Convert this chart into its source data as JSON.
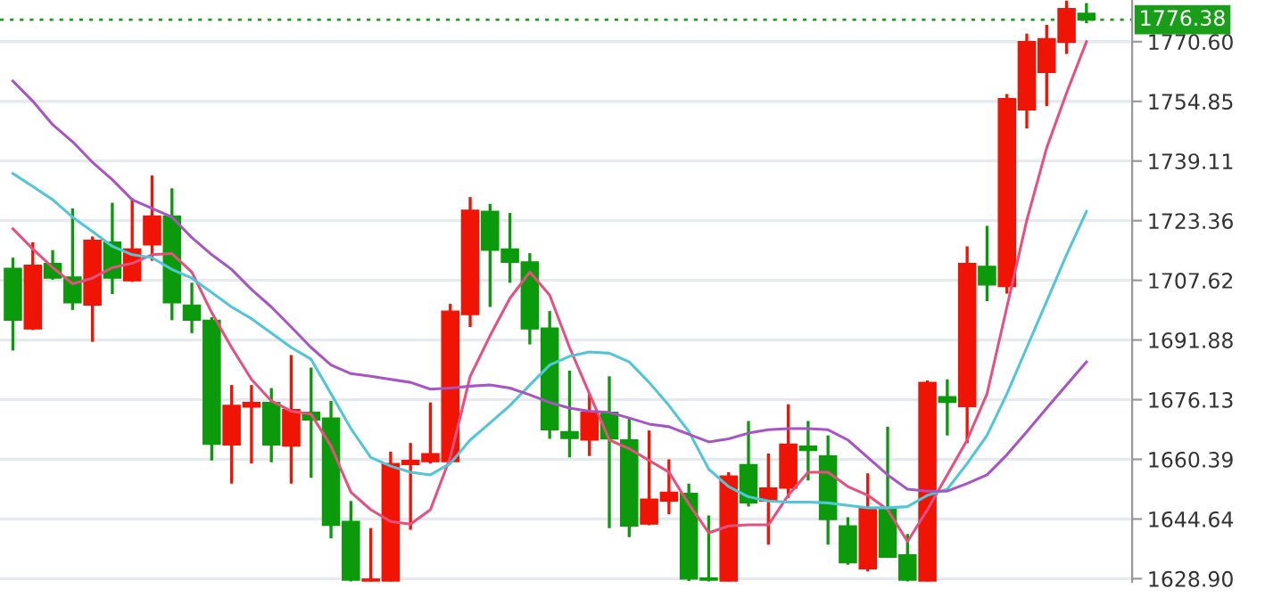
{
  "chart_data": {
    "type": "candlestick",
    "categories": [
      null,
      null,
      null,
      null,
      null,
      null,
      null,
      null,
      null,
      null,
      null,
      null,
      null,
      null,
      null,
      null,
      null,
      null,
      null,
      null,
      null,
      null,
      null,
      null,
      null,
      null,
      null,
      null,
      null,
      null,
      null,
      null,
      null,
      null,
      null,
      null,
      null,
      null,
      null,
      null,
      null,
      null,
      null,
      null,
      null,
      null,
      null,
      null,
      null,
      null,
      null,
      null,
      null,
      null,
      null
    ],
    "ohlc": [
      [
        1710.8,
        1713.6,
        1689.1,
        1697.1
      ],
      [
        1694.8,
        1717.7,
        1694.5,
        1711.6
      ],
      [
        1712.1,
        1715.6,
        1707.8,
        1708.2
      ],
      [
        1708.5,
        1726.6,
        1699.8,
        1701.7
      ],
      [
        1701.1,
        1719.2,
        1691.4,
        1718.2
      ],
      [
        1717.7,
        1728.1,
        1704.0,
        1708.2
      ],
      [
        1707.5,
        1729.3,
        1707.2,
        1715.9
      ],
      [
        1717.0,
        1735.3,
        1712.8,
        1724.6
      ],
      [
        1724.6,
        1731.9,
        1697.1,
        1701.7
      ],
      [
        1701.1,
        1707.0,
        1693.7,
        1697.1
      ],
      [
        1697.1,
        1697.9,
        1660.1,
        1664.4
      ],
      [
        1664.2,
        1680.0,
        1654.0,
        1674.6
      ],
      [
        1674.2,
        1680.0,
        1659.3,
        1675.4
      ],
      [
        1675.4,
        1679.2,
        1659.6,
        1664.2
      ],
      [
        1663.9,
        1687.9,
        1654.0,
        1673.5
      ],
      [
        1672.8,
        1684.6,
        1655.5,
        1670.8
      ],
      [
        1671.3,
        1675.8,
        1639.5,
        1643.0
      ],
      [
        1644.0,
        1649.4,
        1628.2,
        1628.5
      ],
      [
        1628.3,
        1642.2,
        1628.2,
        1628.8
      ],
      [
        1628.3,
        1662.4,
        1628.2,
        1659.3
      ],
      [
        1659.0,
        1664.7,
        1641.8,
        1660.1
      ],
      [
        1659.8,
        1675.4,
        1659.3,
        1661.9
      ],
      [
        1659.8,
        1701.4,
        1659.3,
        1699.5
      ],
      [
        1698.6,
        1729.6,
        1695.3,
        1726.1
      ],
      [
        1725.8,
        1727.8,
        1700.6,
        1715.6
      ],
      [
        1715.9,
        1725.4,
        1707.0,
        1712.4
      ],
      [
        1712.5,
        1714.8,
        1690.7,
        1694.8
      ],
      [
        1695.0,
        1699.5,
        1665.8,
        1668.2
      ],
      [
        1667.7,
        1683.8,
        1660.9,
        1665.9
      ],
      [
        1665.5,
        1677.7,
        1661.3,
        1672.8
      ],
      [
        1672.8,
        1682.3,
        1642.2,
        1665.8
      ],
      [
        1665.5,
        1671.3,
        1639.9,
        1642.8
      ],
      [
        1643.3,
        1668.0,
        1643.0,
        1649.9
      ],
      [
        1649.4,
        1660.4,
        1645.9,
        1651.7
      ],
      [
        1651.4,
        1654.0,
        1628.3,
        1628.8
      ],
      [
        1629.1,
        1645.6,
        1628.2,
        1628.5
      ],
      [
        1628.3,
        1657.0,
        1628.2,
        1656.0
      ],
      [
        1659.0,
        1670.5,
        1647.9,
        1648.9
      ],
      [
        1649.4,
        1661.9,
        1637.9,
        1652.8
      ],
      [
        1652.8,
        1674.9,
        1650.2,
        1664.4
      ],
      [
        1663.9,
        1670.5,
        1654.8,
        1662.7
      ],
      [
        1661.3,
        1666.7,
        1637.9,
        1644.5
      ],
      [
        1642.8,
        1645.1,
        1632.6,
        1633.1
      ],
      [
        1631.5,
        1656.7,
        1630.8,
        1647.6
      ],
      [
        1647.6,
        1669.0,
        1634.5,
        1634.6
      ],
      [
        1635.2,
        1640.7,
        1628.2,
        1628.5
      ],
      [
        1628.3,
        1681.2,
        1628.2,
        1680.7
      ],
      [
        1676.9,
        1681.5,
        1666.7,
        1675.4
      ],
      [
        1674.3,
        1716.6,
        1664.7,
        1712.1
      ],
      [
        1711.3,
        1722.0,
        1702.1,
        1706.4
      ],
      [
        1706.0,
        1756.8,
        1704.1,
        1755.6
      ],
      [
        1752.6,
        1772.7,
        1747.7,
        1770.6
      ],
      [
        1762.5,
        1775.0,
        1753.6,
        1771.4
      ],
      [
        1770.4,
        1781.4,
        1767.4,
        1779.3
      ],
      [
        1778.1,
        1780.8,
        1775.5,
        1776.38
      ]
    ],
    "colors": [
      "#0b9a0b",
      "#f01405",
      "#0b9a0b",
      "#0b9a0b",
      "#f01405",
      "#0b9a0b",
      "#f01405",
      "#f01405",
      "#0b9a0b",
      "#0b9a0b",
      "#0b9a0b",
      "#f01405",
      "#f01405",
      "#0b9a0b",
      "#f01405",
      "#0b9a0b",
      "#0b9a0b",
      "#0b9a0b",
      "#f01405",
      "#f01405",
      "#f01405",
      "#f01405",
      "#f01405",
      "#f01405",
      "#0b9a0b",
      "#0b9a0b",
      "#0b9a0b",
      "#0b9a0b",
      "#0b9a0b",
      "#f01405",
      "#0b9a0b",
      "#0b9a0b",
      "#f01405",
      "#f01405",
      "#0b9a0b",
      "#0b9a0b",
      "#f01405",
      "#0b9a0b",
      "#f01405",
      "#f01405",
      "#0b9a0b",
      "#0b9a0b",
      "#0b9a0b",
      "#f01405",
      "#0b9a0b",
      "#0b9a0b",
      "#f01405",
      "#0b9a0b",
      "#f01405",
      "#0b9a0b",
      "#f01405",
      "#f01405",
      "#f01405",
      "#f01405",
      "#0b9a0b"
    ],
    "series": [
      {
        "type": "line",
        "color": "#e5507f",
        "values": [
          1721.2,
          1715.9,
          1711.0,
          1706.7,
          1708.2,
          1711.0,
          1712.1,
          1714.4,
          1714.7,
          1709.8,
          1699.1,
          1689.9,
          1681.5,
          1675.8,
          1673.1,
          1672.3,
          1663.9,
          1651.7,
          1647.1,
          1644.0,
          1643.3,
          1647.1,
          1660.9,
          1682.3,
          1693.0,
          1702.9,
          1709.8,
          1703.7,
          1689.9,
          1677.7,
          1665.5,
          1663.2,
          1660.1,
          1657.0,
          1648.6,
          1641.0,
          1642.8,
          1643.1,
          1643.1,
          1650.9,
          1657.0,
          1657.0,
          1653.2,
          1650.9,
          1647.1,
          1638.7,
          1647.1,
          1656.3,
          1665.5,
          1677.7,
          1700.6,
          1723.5,
          1742.6,
          1757.1,
          1770.6
        ]
      },
      {
        "type": "line",
        "color": "#52c6d8",
        "values": [
          1735.8,
          1732.4,
          1728.9,
          1724.3,
          1720.5,
          1716.6,
          1714.4,
          1713.6,
          1710.5,
          1708.2,
          1704.4,
          1700.6,
          1697.5,
          1693.7,
          1689.9,
          1686.8,
          1677.7,
          1668.5,
          1660.9,
          1658.6,
          1657.0,
          1656.3,
          1659.3,
          1665.5,
          1670.0,
          1674.6,
          1680.0,
          1685.3,
          1687.6,
          1688.7,
          1688.4,
          1686.1,
          1680.7,
          1674.6,
          1667.7,
          1657.8,
          1653.2,
          1650.5,
          1649.4,
          1649.1,
          1649.1,
          1648.9,
          1648.2,
          1647.6,
          1647.6,
          1647.9,
          1650.9,
          1652.5,
          1659.3,
          1666.7,
          1677.7,
          1689.9,
          1702.1,
          1714.4,
          1725.8
        ]
      },
      {
        "type": "line",
        "color": "#a655c2",
        "values": [
          1760.2,
          1754.9,
          1748.7,
          1744.2,
          1738.8,
          1734.2,
          1728.9,
          1726.6,
          1724.3,
          1718.9,
          1714.4,
          1710.5,
          1705.2,
          1700.6,
          1695.3,
          1689.9,
          1685.3,
          1683.0,
          1682.3,
          1681.5,
          1680.7,
          1678.9,
          1679.2,
          1679.7,
          1680.0,
          1679.2,
          1677.4,
          1675.4,
          1673.9,
          1673.1,
          1672.8,
          1671.3,
          1669.7,
          1669.0,
          1667.0,
          1665.0,
          1665.8,
          1667.3,
          1668.2,
          1668.5,
          1668.5,
          1668.2,
          1665.5,
          1660.9,
          1656.3,
          1652.5,
          1652.0,
          1652.0,
          1654.0,
          1656.3,
          1661.6,
          1667.7,
          1673.9,
          1680.0,
          1686.1
        ]
      }
    ],
    "ylim": [
      1628.0,
      1781.6
    ],
    "yticks": [
      {
        "value": 1628.9,
        "label": "1628.90"
      },
      {
        "value": 1644.64,
        "label": "1644.64"
      },
      {
        "value": 1660.39,
        "label": "1660.39"
      },
      {
        "value": 1676.13,
        "label": "1676.13"
      },
      {
        "value": 1691.88,
        "label": "1691.88"
      },
      {
        "value": 1707.62,
        "label": "1707.62"
      },
      {
        "value": 1723.36,
        "label": "1723.36"
      },
      {
        "value": 1739.11,
        "label": "1739.11"
      },
      {
        "value": 1754.85,
        "label": "1754.85"
      },
      {
        "value": 1770.6,
        "label": "1770.60"
      }
    ],
    "ref_lines": [
      {
        "axis": "y",
        "value": 1776.38,
        "label": "1776.38",
        "color": "#1a9e1a",
        "line_style": "dotted"
      }
    ],
    "grid": "y",
    "tick_labels": "y"
  }
}
